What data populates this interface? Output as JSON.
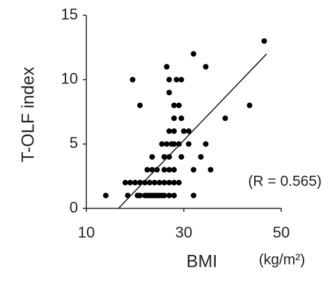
{
  "chart_data": {
    "type": "scatter",
    "x_label": "BMI",
    "y_label": "T-OLF index",
    "x_unit": "(kg/m²)",
    "annotation": "(R = 0.565)",
    "series": [
      {
        "color": "#000000",
        "x": [
          46.5,
          32,
          26.5,
          34.5,
          19.5,
          27,
          28.5,
          29.5,
          27,
          21,
          28,
          29,
          43.5,
          28,
          29.5,
          38.5,
          27,
          28,
          30,
          31,
          25.5,
          26.5,
          27.5,
          28,
          29,
          31,
          34.5,
          23.5,
          26,
          27,
          29.5,
          33.5,
          22.5,
          23.5,
          24.5,
          26,
          27,
          28,
          32,
          35.5,
          18,
          19,
          20,
          21,
          22,
          23,
          24,
          25,
          26,
          27,
          28,
          29,
          14,
          18.5,
          20.5,
          21,
          22,
          22.5,
          23,
          23.5,
          24,
          24.5,
          25,
          25.5,
          26,
          27,
          28,
          32
        ],
        "values": [
          13,
          12,
          11,
          11,
          10,
          10,
          10,
          10,
          9,
          8,
          8,
          8,
          8,
          7,
          7,
          7,
          6,
          6,
          6,
          6,
          5,
          5,
          5,
          5,
          5,
          5,
          5,
          4,
          4,
          4,
          4,
          4,
          3,
          3,
          3,
          3,
          3,
          3,
          3,
          3,
          2,
          2,
          2,
          2,
          2,
          2,
          2,
          2,
          2,
          2,
          2,
          2,
          1,
          1,
          1,
          1,
          1,
          1,
          1,
          1,
          1,
          1,
          1,
          1,
          1,
          1,
          1,
          1
        ]
      }
    ],
    "trend_line": {
      "x": [
        16.6,
        47
      ],
      "y": [
        0,
        12
      ]
    },
    "xlim": [
      10,
      50
    ],
    "xticks": [
      10,
      30,
      50
    ],
    "ylim": [
      0,
      15
    ],
    "yticks": [
      0,
      5,
      10,
      15
    ],
    "grid": false
  }
}
